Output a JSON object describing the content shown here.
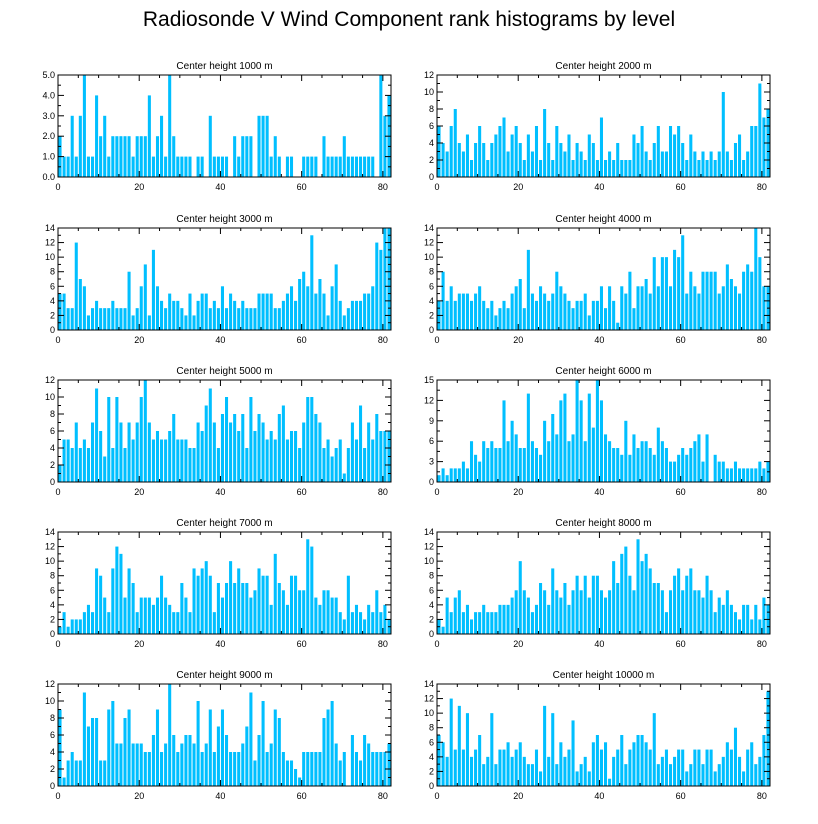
{
  "figure_title": "Radiosonde V Wind Component rank histograms by level",
  "colors": {
    "bar": "#00bfff",
    "axis": "#000000",
    "background": "#ffffff"
  },
  "chart_data": [
    {
      "type": "bar",
      "title": "Center height 1000 m",
      "xlim": [
        0,
        82
      ],
      "ylim": [
        0,
        5
      ],
      "xticks": [
        0,
        20,
        40,
        60,
        80
      ],
      "yticks": [
        "0.0",
        "1.0",
        "2.0",
        "3.0",
        "4.0",
        "5.0"
      ],
      "ytick_values": [
        0,
        1,
        2,
        3,
        4,
        5
      ],
      "values": [
        2,
        1,
        1,
        3,
        1,
        3,
        5,
        1,
        1,
        4,
        2,
        3,
        1,
        2,
        2,
        2,
        2,
        2,
        1,
        2,
        2,
        2,
        4,
        1,
        2,
        3,
        1,
        5,
        2,
        1,
        1,
        1,
        1,
        0,
        1,
        1,
        0,
        3,
        1,
        1,
        1,
        1,
        0,
        2,
        1,
        2,
        2,
        2,
        0,
        3,
        3,
        3,
        1,
        2,
        1,
        0,
        1,
        1,
        0,
        0,
        1,
        1,
        1,
        1,
        0,
        2,
        1,
        1,
        1,
        1,
        2,
        1,
        1,
        1,
        1,
        1,
        1,
        1,
        0,
        5,
        3,
        4
      ]
    },
    {
      "type": "bar",
      "title": "Center height 2000 m",
      "xlim": [
        0,
        82
      ],
      "ylim": [
        0,
        12
      ],
      "xticks": [
        0,
        20,
        40,
        60,
        80
      ],
      "yticks": [
        "0",
        "2",
        "4",
        "6",
        "8",
        "10",
        "12"
      ],
      "ytick_values": [
        0,
        2,
        4,
        6,
        8,
        10,
        12
      ],
      "values": [
        6,
        4,
        3,
        6,
        8,
        4,
        3,
        5,
        2,
        4,
        6,
        4,
        2,
        4,
        5,
        6,
        7,
        3,
        5,
        6,
        4,
        2,
        5,
        3,
        6,
        2,
        8,
        4,
        2,
        6,
        4,
        3,
        5,
        2,
        4,
        3,
        2,
        5,
        4,
        2,
        7,
        2,
        3,
        2,
        4,
        2,
        2,
        2,
        5,
        4,
        6,
        3,
        2,
        4,
        6,
        3,
        3,
        6,
        5,
        6,
        4,
        2,
        5,
        3,
        2,
        3,
        2,
        3,
        2,
        3,
        10,
        3,
        2,
        4,
        5,
        2,
        3,
        6,
        6,
        11,
        7,
        8
      ]
    },
    {
      "type": "bar",
      "title": "Center height 3000 m",
      "xlim": [
        0,
        82
      ],
      "ylim": [
        0,
        14
      ],
      "xticks": [
        0,
        20,
        40,
        60,
        80
      ],
      "yticks": [
        "0",
        "2",
        "4",
        "6",
        "8",
        "10",
        "12",
        "14"
      ],
      "ytick_values": [
        0,
        2,
        4,
        6,
        8,
        10,
        12,
        14
      ],
      "values": [
        5,
        5,
        3,
        3,
        12,
        7,
        6,
        2,
        3,
        4,
        3,
        3,
        3,
        4,
        3,
        3,
        3,
        8,
        2,
        3,
        6,
        9,
        2,
        11,
        6,
        4,
        3,
        5,
        4,
        4,
        3,
        2,
        5,
        2,
        4,
        5,
        5,
        3,
        4,
        3,
        6,
        3,
        5,
        4,
        3,
        4,
        3,
        3,
        3,
        5,
        5,
        5,
        5,
        3,
        3,
        4,
        5,
        6,
        4,
        7,
        8,
        6,
        13,
        5,
        7,
        5,
        2,
        6,
        9,
        4,
        2,
        3,
        4,
        4,
        4,
        5,
        5,
        6,
        12,
        11,
        14,
        14
      ]
    },
    {
      "type": "bar",
      "title": "Center height 4000 m",
      "xlim": [
        0,
        82
      ],
      "ylim": [
        0,
        14
      ],
      "xticks": [
        0,
        20,
        40,
        60,
        80
      ],
      "yticks": [
        "0",
        "2",
        "4",
        "6",
        "8",
        "10",
        "12",
        "14"
      ],
      "ytick_values": [
        0,
        2,
        4,
        6,
        8,
        10,
        12,
        14
      ],
      "values": [
        4,
        8,
        4,
        6,
        4,
        5,
        5,
        5,
        4,
        5,
        6,
        4,
        3,
        4,
        2,
        3,
        4,
        3,
        5,
        6,
        7,
        3,
        11,
        5,
        4,
        6,
        5,
        4,
        5,
        8,
        6,
        5,
        4,
        3,
        4,
        4,
        5,
        2,
        4,
        4,
        6,
        3,
        6,
        4,
        1,
        6,
        5,
        8,
        3,
        6,
        6,
        7,
        5,
        10,
        6,
        10,
        10,
        6,
        11,
        10,
        13,
        5,
        8,
        6,
        5,
        8,
        8,
        8,
        8,
        5,
        6,
        9,
        7,
        6,
        5,
        8,
        9,
        8,
        14,
        10,
        6,
        6
      ]
    },
    {
      "type": "bar",
      "title": "Center height 5000 m",
      "xlim": [
        0,
        82
      ],
      "ylim": [
        0,
        12
      ],
      "xticks": [
        0,
        20,
        40,
        60,
        80
      ],
      "yticks": [
        "0",
        "2",
        "4",
        "6",
        "8",
        "10",
        "12"
      ],
      "ytick_values": [
        0,
        2,
        4,
        6,
        8,
        10,
        12
      ],
      "values": [
        2,
        5,
        5,
        4,
        7,
        4,
        5,
        4,
        7,
        11,
        6,
        3,
        10,
        4,
        10,
        7,
        4,
        7,
        5,
        7,
        10,
        12,
        7,
        5,
        6,
        5,
        5,
        6,
        8,
        5,
        5,
        5,
        4,
        4,
        7,
        6,
        9,
        11,
        7,
        4,
        8,
        10,
        7,
        8,
        6,
        8,
        4,
        10,
        6,
        8,
        7,
        5,
        6,
        5,
        8,
        9,
        5,
        6,
        6,
        4,
        7,
        10,
        10,
        8,
        7,
        4,
        5,
        3,
        4,
        5,
        1,
        4,
        7,
        5,
        9,
        4,
        7,
        5,
        8,
        6,
        6,
        6
      ]
    },
    {
      "type": "bar",
      "title": "Center height 6000 m",
      "xlim": [
        0,
        82
      ],
      "ylim": [
        0,
        15
      ],
      "xticks": [
        0,
        20,
        40,
        60,
        80
      ],
      "yticks": [
        "0",
        "3",
        "6",
        "9",
        "12",
        "15"
      ],
      "ytick_values": [
        0,
        3,
        6,
        9,
        12,
        15
      ],
      "values": [
        1,
        2,
        1,
        2,
        2,
        2,
        3,
        2,
        6,
        4,
        3,
        6,
        5,
        6,
        5,
        5,
        12,
        6,
        9,
        7,
        5,
        5,
        13,
        6,
        5,
        4,
        9,
        6,
        10,
        7,
        12,
        13,
        6,
        7,
        15,
        12,
        6,
        13,
        8,
        15,
        12,
        7,
        6,
        5,
        5,
        4,
        9,
        4,
        7,
        5,
        6,
        6,
        5,
        4,
        8,
        6,
        5,
        3,
        3,
        4,
        5,
        4,
        5,
        6,
        7,
        3,
        7,
        0,
        4,
        3,
        3,
        2,
        2,
        3,
        2,
        2,
        2,
        2,
        2,
        3,
        2,
        3
      ]
    },
    {
      "type": "bar",
      "title": "Center height 7000 m",
      "xlim": [
        0,
        82
      ],
      "ylim": [
        0,
        14
      ],
      "xticks": [
        0,
        20,
        40,
        60,
        80
      ],
      "yticks": [
        "0",
        "2",
        "4",
        "6",
        "8",
        "10",
        "12",
        "14"
      ],
      "ytick_values": [
        0,
        2,
        4,
        6,
        8,
        10,
        12,
        14
      ],
      "values": [
        1,
        3,
        1,
        2,
        2,
        2,
        3,
        4,
        3,
        9,
        8,
        5,
        3,
        9,
        12,
        11,
        5,
        9,
        7,
        3,
        5,
        5,
        5,
        4,
        5,
        8,
        5,
        4,
        3,
        3,
        7,
        5,
        3,
        9,
        8,
        9,
        10,
        8,
        3,
        7,
        5,
        7,
        10,
        7,
        9,
        7,
        7,
        5,
        6,
        9,
        8,
        8,
        4,
        11,
        7,
        6,
        4,
        8,
        8,
        6,
        6,
        13,
        12,
        5,
        4,
        6,
        6,
        5,
        5,
        3,
        2,
        8,
        3,
        4,
        3,
        2,
        4,
        3,
        6,
        3,
        4,
        2
      ]
    },
    {
      "type": "bar",
      "title": "Center height 8000 m",
      "xlim": [
        0,
        82
      ],
      "ylim": [
        0,
        14
      ],
      "xticks": [
        0,
        20,
        40,
        60,
        80
      ],
      "yticks": [
        "0",
        "2",
        "4",
        "6",
        "8",
        "10",
        "12",
        "14"
      ],
      "ytick_values": [
        0,
        2,
        4,
        6,
        8,
        10,
        12,
        14
      ],
      "values": [
        2,
        1,
        5,
        3,
        5,
        6,
        3,
        4,
        2,
        3,
        3,
        4,
        3,
        3,
        3,
        4,
        4,
        4,
        5,
        6,
        10,
        6,
        5,
        3,
        4,
        7,
        6,
        4,
        9,
        6,
        5,
        7,
        4,
        6,
        8,
        6,
        8,
        5,
        8,
        8,
        6,
        5,
        6,
        10,
        7,
        11,
        12,
        8,
        6,
        13,
        10,
        11,
        9,
        7,
        7,
        6,
        3,
        6,
        8,
        9,
        6,
        8,
        9,
        6,
        6,
        5,
        8,
        6,
        3,
        5,
        4,
        6,
        4,
        3,
        2,
        4,
        4,
        2,
        4,
        2,
        5,
        4
      ]
    },
    {
      "type": "bar",
      "title": "Center height 9000 m",
      "xlim": [
        0,
        82
      ],
      "ylim": [
        0,
        12
      ],
      "xticks": [
        0,
        20,
        40,
        60,
        80
      ],
      "yticks": [
        "0",
        "2",
        "4",
        "6",
        "8",
        "10",
        "12"
      ],
      "ytick_values": [
        0,
        2,
        4,
        6,
        8,
        10,
        12
      ],
      "values": [
        9,
        1,
        3,
        4,
        3,
        3,
        11,
        7,
        8,
        8,
        3,
        3,
        9,
        10,
        5,
        5,
        8,
        9,
        5,
        5,
        5,
        4,
        4,
        6,
        9,
        4,
        5,
        12,
        6,
        4,
        5,
        6,
        6,
        5,
        10,
        4,
        5,
        9,
        4,
        7,
        9,
        6,
        4,
        4,
        4,
        5,
        7,
        11,
        3,
        6,
        10,
        4,
        5,
        9,
        8,
        4,
        3,
        3,
        2,
        1,
        4,
        4,
        4,
        4,
        4,
        8,
        9,
        10,
        5,
        3,
        4,
        0,
        6,
        4,
        3,
        6,
        5,
        4,
        4,
        4,
        4,
        5
      ]
    },
    {
      "type": "bar",
      "title": "Center height 10000 m",
      "xlim": [
        0,
        82
      ],
      "ylim": [
        0,
        14
      ],
      "xticks": [
        0,
        20,
        40,
        60,
        80
      ],
      "yticks": [
        "0",
        "2",
        "4",
        "6",
        "8",
        "10",
        "12",
        "14"
      ],
      "ytick_values": [
        0,
        2,
        4,
        6,
        8,
        10,
        12,
        14
      ],
      "values": [
        7,
        6,
        4,
        12,
        5,
        11,
        5,
        10,
        4,
        5,
        7,
        3,
        4,
        10,
        3,
        5,
        5,
        6,
        4,
        5,
        6,
        4,
        3,
        3,
        5,
        2,
        11,
        4,
        10,
        3,
        6,
        4,
        5,
        9,
        2,
        3,
        4,
        2,
        6,
        7,
        5,
        6,
        1,
        4,
        5,
        7,
        3,
        5,
        6,
        7,
        7,
        6,
        5,
        10,
        3,
        4,
        5,
        3,
        4,
        5,
        5,
        2,
        3,
        5,
        5,
        3,
        5,
        5,
        2,
        3,
        4,
        6,
        5,
        8,
        4,
        2,
        5,
        6,
        3,
        4,
        7,
        13
      ]
    }
  ]
}
